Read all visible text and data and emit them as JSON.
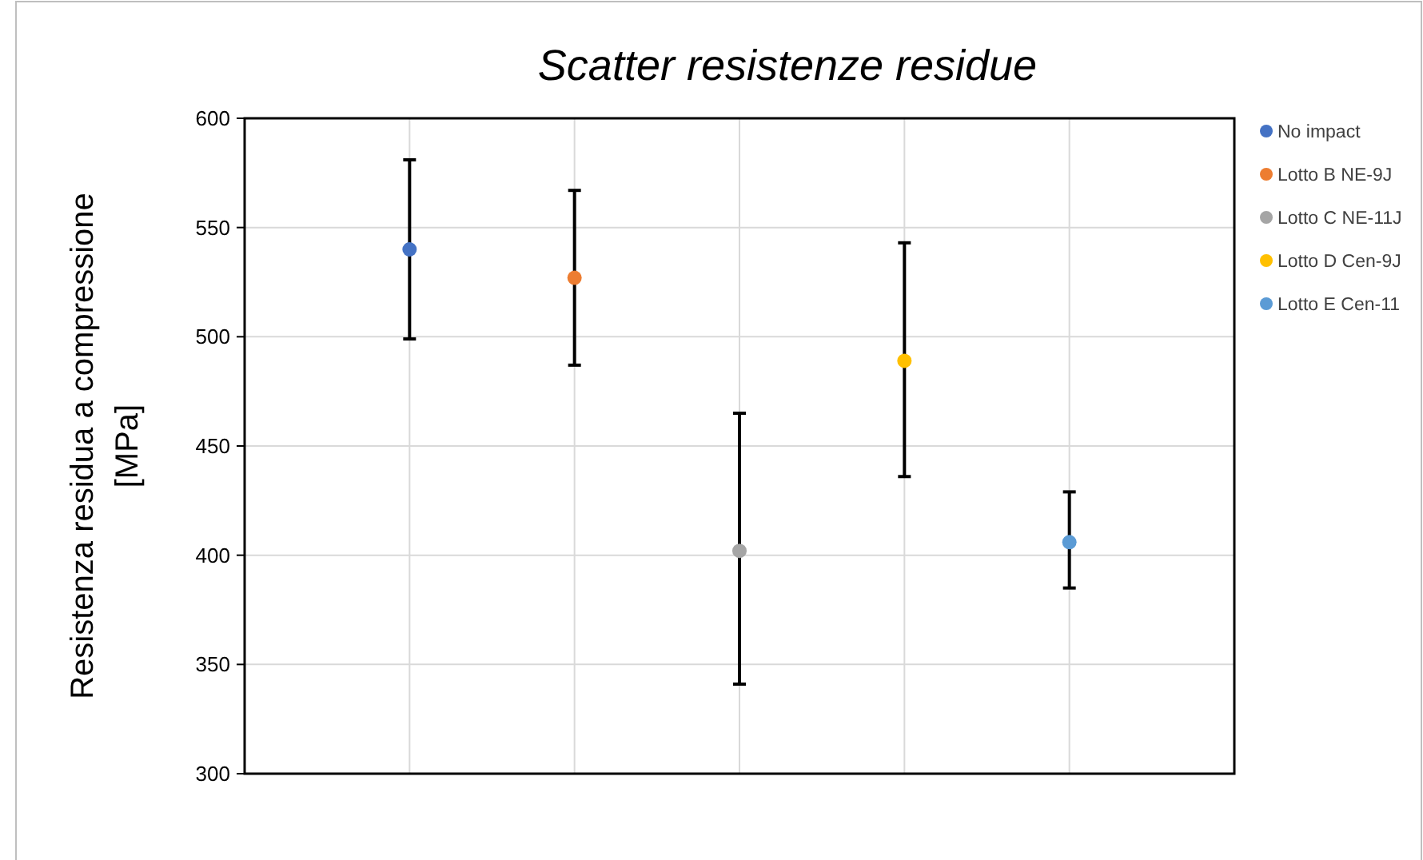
{
  "chart_data": {
    "type": "scatter",
    "title": "Scatter resistenze residue",
    "ylabel": "Resistenza residua a compressione [MPa]",
    "categories": [
      null,
      null,
      null,
      null,
      null
    ],
    "ylim": [
      300,
      600
    ],
    "yticks": [
      300,
      350,
      400,
      450,
      500,
      550,
      600
    ],
    "grid": true,
    "legend": "right",
    "marker": "circle",
    "series": [
      {
        "name": "No impact",
        "color": "#4472c4",
        "values": [
          540,
          null,
          null,
          null,
          null
        ],
        "errors": [
          [
            499,
            581
          ],
          null,
          null,
          null,
          null
        ]
      },
      {
        "name": "Lotto B NE-9J",
        "color": "#ed7d31",
        "values": [
          null,
          527,
          null,
          null,
          null
        ],
        "errors": [
          null,
          [
            487,
            567
          ],
          null,
          null,
          null
        ]
      },
      {
        "name": "Lotto C NE-11J",
        "color": "#a5a5a5",
        "values": [
          null,
          null,
          402,
          null,
          null
        ],
        "errors": [
          null,
          null,
          [
            341,
            465
          ],
          null,
          null
        ]
      },
      {
        "name": "Lotto D Cen-9J",
        "color": "#ffc000",
        "values": [
          null,
          null,
          null,
          489,
          null
        ],
        "errors": [
          null,
          null,
          null,
          [
            436,
            543
          ],
          null
        ]
      },
      {
        "name": "Lotto E Cen-11",
        "color": "#5b9bd5",
        "values": [
          null,
          null,
          null,
          null,
          406
        ],
        "errors": [
          null,
          null,
          null,
          null,
          [
            385,
            429
          ]
        ]
      }
    ]
  }
}
